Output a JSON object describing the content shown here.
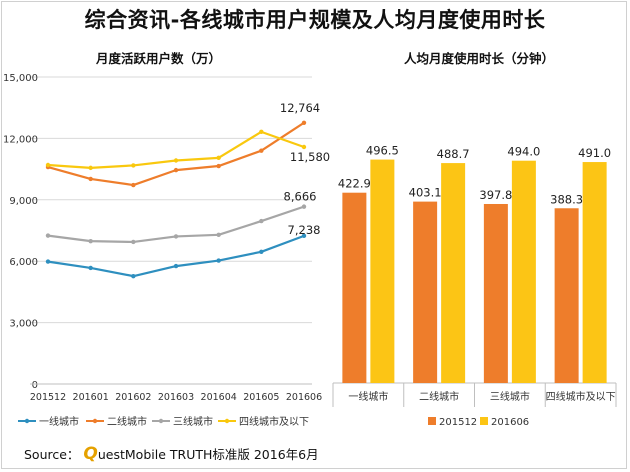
{
  "title": "综合资讯-各线城市用户规模及人均月度使用时长",
  "source": {
    "prefix": "Source：",
    "brand_initial": "Q",
    "brand_rest": "uestMobile TRUTH标准版 2016年6月"
  },
  "colors": {
    "tier1": "#2e8fbf",
    "tier2": "#ee7d2b",
    "tier3": "#a6a6a6",
    "tier4": "#f9c80e",
    "bar_201512": "#ee7d2b",
    "bar_201606": "#fcc515"
  },
  "chart_data": [
    {
      "type": "line",
      "title": "月度活跃用户数（万）",
      "x": [
        "201512",
        "201601",
        "201602",
        "201603",
        "201604",
        "201605",
        "201606"
      ],
      "ylim": [
        0,
        15000
      ],
      "yticks": [
        "0",
        "3,000",
        "6,000",
        "9,000",
        "12,000",
        "15,000"
      ],
      "grid": true,
      "legend_position": "bottom",
      "series": [
        {
          "name": "一线城市",
          "values": [
            5980,
            5670,
            5270,
            5760,
            6030,
            6460,
            7238
          ],
          "end_label": "7,238"
        },
        {
          "name": "二线城市",
          "values": [
            10600,
            10020,
            9720,
            10450,
            10650,
            11400,
            12764
          ],
          "end_label": "12,764"
        },
        {
          "name": "三线城市",
          "values": [
            7250,
            6980,
            6940,
            7210,
            7290,
            7960,
            8666
          ],
          "end_label": "8,666"
        },
        {
          "name": "四线城市及以下",
          "values": [
            10700,
            10560,
            10680,
            10920,
            11050,
            12320,
            11580
          ],
          "end_label": "11,580"
        }
      ]
    },
    {
      "type": "bar",
      "title": "人均月度使用时长（分钟）",
      "categories": [
        "一线城市",
        "二线城市",
        "三线城市",
        "四线城市及以下"
      ],
      "ylim": [
        0,
        600
      ],
      "grid": false,
      "legend_position": "bottom",
      "series": [
        {
          "name": "201512",
          "values": [
            422.9,
            403.1,
            397.8,
            388.3
          ],
          "labels": [
            "422.9",
            "403.1",
            "397.8",
            "388.3"
          ]
        },
        {
          "name": "201606",
          "values": [
            496.5,
            488.7,
            494.0,
            491.0
          ],
          "labels": [
            "496.5",
            "488.7",
            "494.0",
            "491.0"
          ]
        }
      ]
    }
  ]
}
